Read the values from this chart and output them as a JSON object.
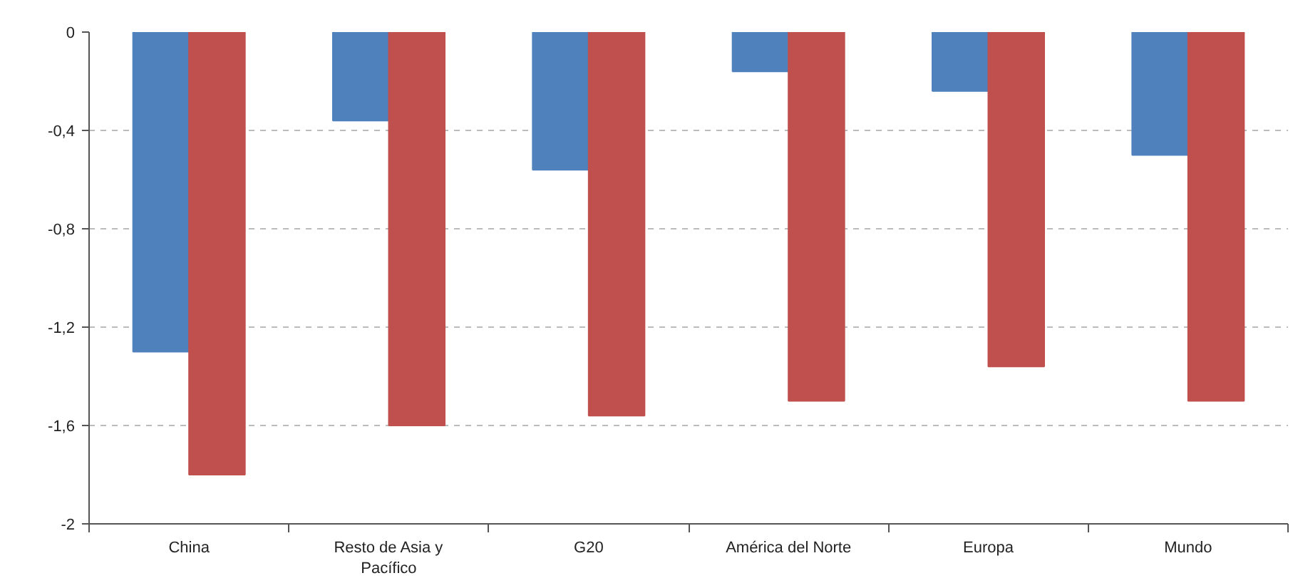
{
  "chart_data": {
    "type": "bar",
    "categories": [
      "China",
      "Resto de Asia y Pacífico",
      "G20",
      "América del Norte",
      "Europa",
      "Mundo"
    ],
    "series": [
      {
        "color": "#4f81bd",
        "values": [
          -1.3,
          -0.36,
          -0.56,
          -0.16,
          -0.24,
          -0.5
        ]
      },
      {
        "color": "#c0504d",
        "values": [
          -1.8,
          -1.6,
          -1.56,
          -1.5,
          -1.36,
          -1.5
        ]
      }
    ],
    "ylim": [
      -2,
      0
    ],
    "yticks": [
      0,
      {
        "value": -0.4,
        "label": "-0,4"
      },
      {
        "value": -0.8,
        "label": "-0,8"
      },
      {
        "value": -1.2,
        "label": "-1,2"
      },
      {
        "value": -1.6,
        "label": "-1,6"
      },
      -2
    ],
    "grid": "y"
  }
}
